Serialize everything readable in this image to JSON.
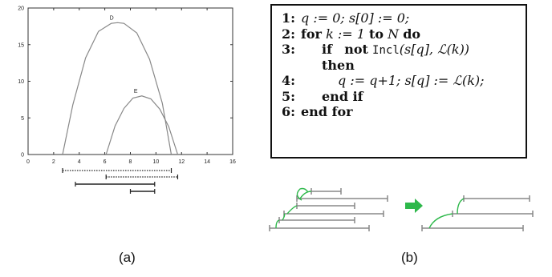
{
  "chart_data": {
    "type": "line",
    "xlim": [
      0,
      16
    ],
    "ylim": [
      0,
      20
    ],
    "xticks": [
      "0",
      "2",
      "4",
      "6",
      "8",
      "10",
      "12",
      "14",
      "16"
    ],
    "yticks": [
      "0",
      "5",
      "10",
      "15",
      "20"
    ],
    "series": [
      {
        "name": "D",
        "x": [
          2.7,
          3.5,
          4.5,
          5.5,
          6.5,
          7.0,
          7.5,
          8.5,
          9.5,
          10.5,
          11.2
        ],
        "y": [
          0,
          6.8,
          13.2,
          16.8,
          17.9,
          18.0,
          17.9,
          16.6,
          13.0,
          7.0,
          0
        ]
      },
      {
        "name": "E",
        "x": [
          6.1,
          6.8,
          7.5,
          8.2,
          8.9,
          9.6,
          10.3,
          11.0,
          11.7
        ],
        "y": [
          0,
          3.9,
          6.3,
          7.7,
          8.0,
          7.6,
          6.2,
          3.8,
          0
        ]
      }
    ],
    "intervals": [
      {
        "start": 2.7,
        "end": 11.2,
        "style": "dotted"
      },
      {
        "start": 6.1,
        "end": 11.7,
        "style": "dotted"
      },
      {
        "start": 3.7,
        "end": 9.9,
        "style": "solid"
      },
      {
        "start": 8.0,
        "end": 9.9,
        "style": "solid"
      }
    ]
  },
  "algorithm": {
    "lines": [
      {
        "num": "1:",
        "text": "q := 0; s[0] := 0;"
      },
      {
        "num": "2:",
        "kw1": "for",
        "text1": " k := 1 ",
        "kw2": "to",
        "text2": " N ",
        "kw3": "do"
      },
      {
        "num": "3:",
        "kw1": "if",
        "kw2": "not",
        "func": "Incl",
        "text": "(s[q], ℒ(k))"
      },
      {
        "num": "",
        "kw": "then"
      },
      {
        "num": "4:",
        "text": "q := q+1; s[q] := ℒ(k);"
      },
      {
        "num": "5:",
        "kw": "end if"
      },
      {
        "num": "6:",
        "kw": "end for"
      }
    ]
  },
  "captions": {
    "a": "(a)",
    "b": "(b)"
  },
  "colors": {
    "line": "#888888",
    "arrow": "#2db84a",
    "text": "#111111"
  }
}
